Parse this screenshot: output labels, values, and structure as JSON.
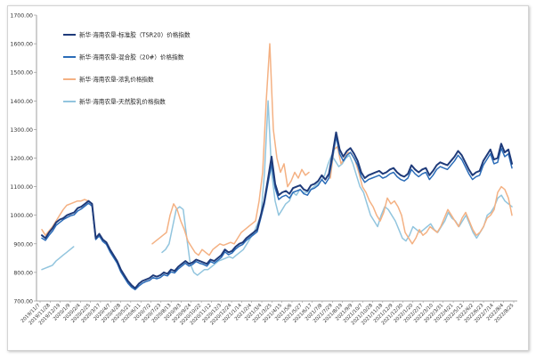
{
  "chart_data": {
    "type": "line",
    "title": "",
    "xlabel": "",
    "ylabel": "",
    "ylim": [
      700,
      1700
    ],
    "y_ticks": [
      "700.00",
      "800.00",
      "900.00",
      "1000.00",
      "1100.00",
      "1200.00",
      "1300.00",
      "1400.00",
      "1500.00",
      "1600.00",
      "1700.00"
    ],
    "legend_placement": "top-left",
    "grid": false,
    "x_tick_labels": [
      "2019/11/7",
      "2019/11/28",
      "2019/12/19",
      "2020/1/9",
      "2020/2/4",
      "2020/2/25",
      "2020/3/17",
      "2020/4/7",
      "2020/4/28",
      "2020/5/21",
      "2020/6/11",
      "2020/7/2",
      "2020/7/23",
      "2020/8/13",
      "2020/9/3",
      "2020/9/24",
      "2020/10/22",
      "2020/11/12",
      "2020/12/3",
      "2020/12/24",
      "2021/1/14",
      "2021/2/4",
      "2021/3/4",
      "2021/3/25",
      "2021/4/15",
      "2021/5/6",
      "2021/5/27",
      "2021/6/17",
      "2021/7/8",
      "2021/7/29",
      "2021/8/19",
      "2021/9/9",
      "2021/10/7",
      "2021/10/28",
      "2021/11/18",
      "2021/12/9",
      "2021/12/30",
      "2022/1/20",
      "2022/2/17",
      "2022/3/10",
      "2022/3/31",
      "2022/4/21",
      "2022/5/12",
      "2022/6/2",
      "2022/6/23",
      "2022/7/14",
      "2022/8/4",
      "2022/8/25"
    ],
    "series": [
      {
        "name": "新华·海南农垦-标准胶（TSR20）价格指数",
        "color": "#1f3b7a",
        "width": 2.0,
        "values": [
          930,
          920,
          940,
          955,
          975,
          985,
          990,
          1000,
          1005,
          1010,
          1025,
          1030,
          1040,
          1050,
          1040,
          920,
          935,
          915,
          905,
          880,
          860,
          840,
          810,
          790,
          770,
          755,
          745,
          760,
          770,
          775,
          780,
          790,
          785,
          790,
          800,
          795,
          810,
          805,
          820,
          830,
          840,
          830,
          835,
          845,
          840,
          835,
          830,
          845,
          840,
          850,
          860,
          880,
          870,
          875,
          890,
          900,
          905,
          920,
          930,
          940,
          950,
          1000,
          1050,
          1125,
          1205,
          1110,
          1070,
          1080,
          1085,
          1075,
          1095,
          1100,
          1105,
          1090,
          1085,
          1105,
          1110,
          1120,
          1140,
          1125,
          1145,
          1215,
          1290,
          1230,
          1205,
          1225,
          1235,
          1215,
          1190,
          1150,
          1130,
          1140,
          1145,
          1150,
          1155,
          1145,
          1150,
          1160,
          1165,
          1150,
          1140,
          1135,
          1145,
          1175,
          1160,
          1150,
          1160,
          1165,
          1140,
          1155,
          1175,
          1185,
          1180,
          1175,
          1190,
          1205,
          1225,
          1210,
          1185,
          1160,
          1140,
          1150,
          1155,
          1190,
          1210,
          1230,
          1195,
          1200,
          1250,
          1220,
          1230,
          1180
        ]
      },
      {
        "name": "新华·海南农垦-混合胶（20#）价格指数",
        "color": "#2b6cb8",
        "width": 1.5,
        "values": [
          920,
          912,
          930,
          945,
          965,
          975,
          985,
          992,
          998,
          1002,
          1015,
          1022,
          1032,
          1042,
          1032,
          915,
          928,
          908,
          898,
          872,
          852,
          832,
          802,
          782,
          762,
          748,
          740,
          752,
          762,
          768,
          772,
          782,
          778,
          782,
          792,
          788,
          802,
          798,
          812,
          822,
          832,
          822,
          828,
          838,
          832,
          828,
          822,
          838,
          832,
          842,
          852,
          872,
          862,
          868,
          882,
          892,
          898,
          912,
          922,
          932,
          942,
          990,
          1040,
          1110,
          1180,
          1095,
          1055,
          1065,
          1070,
          1060,
          1080,
          1085,
          1090,
          1075,
          1070,
          1090,
          1095,
          1105,
          1125,
          1110,
          1130,
          1200,
          1275,
          1215,
          1190,
          1210,
          1220,
          1200,
          1175,
          1135,
          1115,
          1125,
          1130,
          1135,
          1140,
          1130,
          1135,
          1145,
          1150,
          1135,
          1125,
          1120,
          1130,
          1160,
          1145,
          1135,
          1145,
          1150,
          1125,
          1140,
          1160,
          1170,
          1165,
          1160,
          1175,
          1190,
          1210,
          1195,
          1170,
          1145,
          1125,
          1135,
          1140,
          1175,
          1195,
          1215,
          1180,
          1185,
          1235,
          1205,
          1215,
          1165
        ]
      },
      {
        "name": "新华·海南农垦-浓乳价格指数",
        "color": "#f4b183",
        "width": 1.5,
        "values": [
          950,
          930,
          945,
          960,
          980,
          1000,
          1020,
          1035,
          1040,
          1045,
          1050,
          1050,
          1055,
          1050,
          1040,
          null,
          null,
          null,
          null,
          null,
          null,
          null,
          null,
          null,
          null,
          null,
          null,
          null,
          null,
          null,
          null,
          900,
          910,
          920,
          930,
          940,
          1000,
          1040,
          1020,
          980,
          950,
          910,
          890,
          870,
          860,
          880,
          870,
          860,
          880,
          890,
          900,
          895,
          900,
          905,
          900,
          920,
          940,
          950,
          960,
          970,
          980,
          1050,
          1150,
          1400,
          1600,
          1300,
          1200,
          1150,
          1180,
          1100,
          1120,
          1150,
          1130,
          1160,
          1140,
          1150,
          null,
          null,
          null,
          null,
          null,
          1130,
          1230,
          1240,
          1180,
          1200,
          1220,
          1215,
          1190,
          1150,
          1100,
          1080,
          1050,
          1030,
          1000,
          980,
          1010,
          1060,
          1040,
          1050,
          1030,
          1000,
          940,
          920,
          900,
          920,
          950,
          930,
          940,
          960,
          950,
          940,
          960,
          990,
          1020,
          1000,
          980,
          960,
          990,
          1010,
          980,
          950,
          930,
          940,
          960,
          990,
          1000,
          1020,
          1080,
          1100,
          1090,
          1060,
          1000
        ]
      },
      {
        "name": "新华·海南农垦-天然胶乳价格指数",
        "color": "#92c5de",
        "width": 1.5,
        "values": [
          810,
          815,
          820,
          825,
          840,
          850,
          860,
          870,
          880,
          890,
          null,
          null,
          null,
          null,
          null,
          null,
          null,
          null,
          null,
          null,
          null,
          null,
          null,
          null,
          null,
          null,
          null,
          null,
          null,
          null,
          null,
          null,
          null,
          null,
          870,
          880,
          900,
          960,
          1020,
          1030,
          1020,
          920,
          830,
          800,
          790,
          800,
          810,
          810,
          820,
          830,
          840,
          845,
          850,
          855,
          850,
          860,
          870,
          880,
          900,
          920,
          940,
          970,
          1000,
          1150,
          1400,
          1150,
          1050,
          1000,
          1020,
          1040,
          1050,
          1080,
          1070,
          1090,
          1080,
          1080,
          1090,
          1100,
          1110,
          1120,
          1140,
          1180,
          1210,
          1190,
          1170,
          1180,
          1200,
          1210,
          1180,
          1140,
          1100,
          1080,
          1040,
          1000,
          980,
          960,
          1000,
          1030,
          1020,
          1000,
          980,
          950,
          920,
          910,
          930,
          960,
          950,
          940,
          950,
          960,
          970,
          950,
          940,
          960,
          980,
          1010,
          990,
          980,
          960,
          980,
          1000,
          970,
          940,
          920,
          940,
          960,
          1000,
          1010,
          1030,
          1060,
          1070,
          1050,
          1040,
          1030
        ]
      }
    ]
  }
}
